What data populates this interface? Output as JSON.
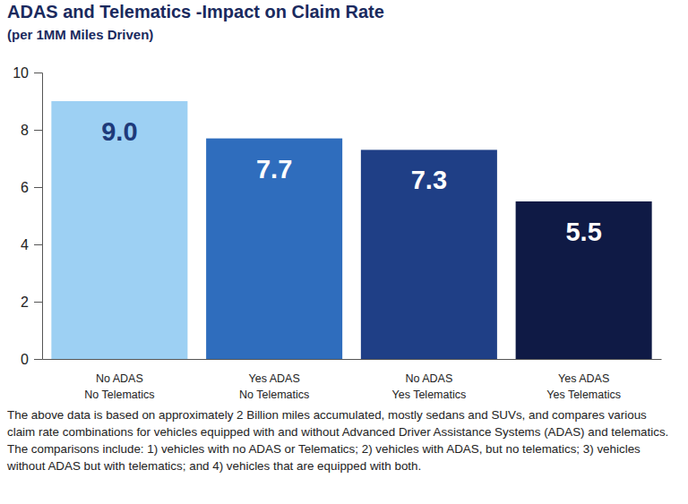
{
  "chart_data": {
    "type": "bar",
    "title": "ADAS and Telematics -Impact on Claim Rate",
    "subtitle": "(per 1MM Miles Driven)",
    "categories": [
      "No ADAS\nNo Telematics",
      "Yes ADAS\nNo Telematics",
      "No ADAS\nYes Telematics",
      "Yes ADAS\nYes Telematics"
    ],
    "values": [
      9.0,
      7.7,
      7.3,
      5.5
    ],
    "value_labels": [
      "9.0",
      "7.7",
      "7.3",
      "5.5"
    ],
    "colors": [
      "#9dd0f3",
      "#2f6dbd",
      "#1f3f86",
      "#0f1a45"
    ],
    "ylim": [
      0,
      10
    ],
    "yticks": [
      0,
      2,
      4,
      6,
      8,
      10
    ],
    "grid": false,
    "data_labels": true,
    "caption": "The above data is based on approximately 2 Billion miles accumulated, mostly sedans and SUVs, and compares various claim rate combinations for vehicles equipped with and without Advanced Driver Assistance Systems (ADAS) and telematics. The comparisons include: 1) vehicles with no ADAS or Telematics; 2) vehicles with ADAS, but no telematics; 3) vehicles without ADAS but with telematics; and 4) vehicles that are equipped with both."
  }
}
